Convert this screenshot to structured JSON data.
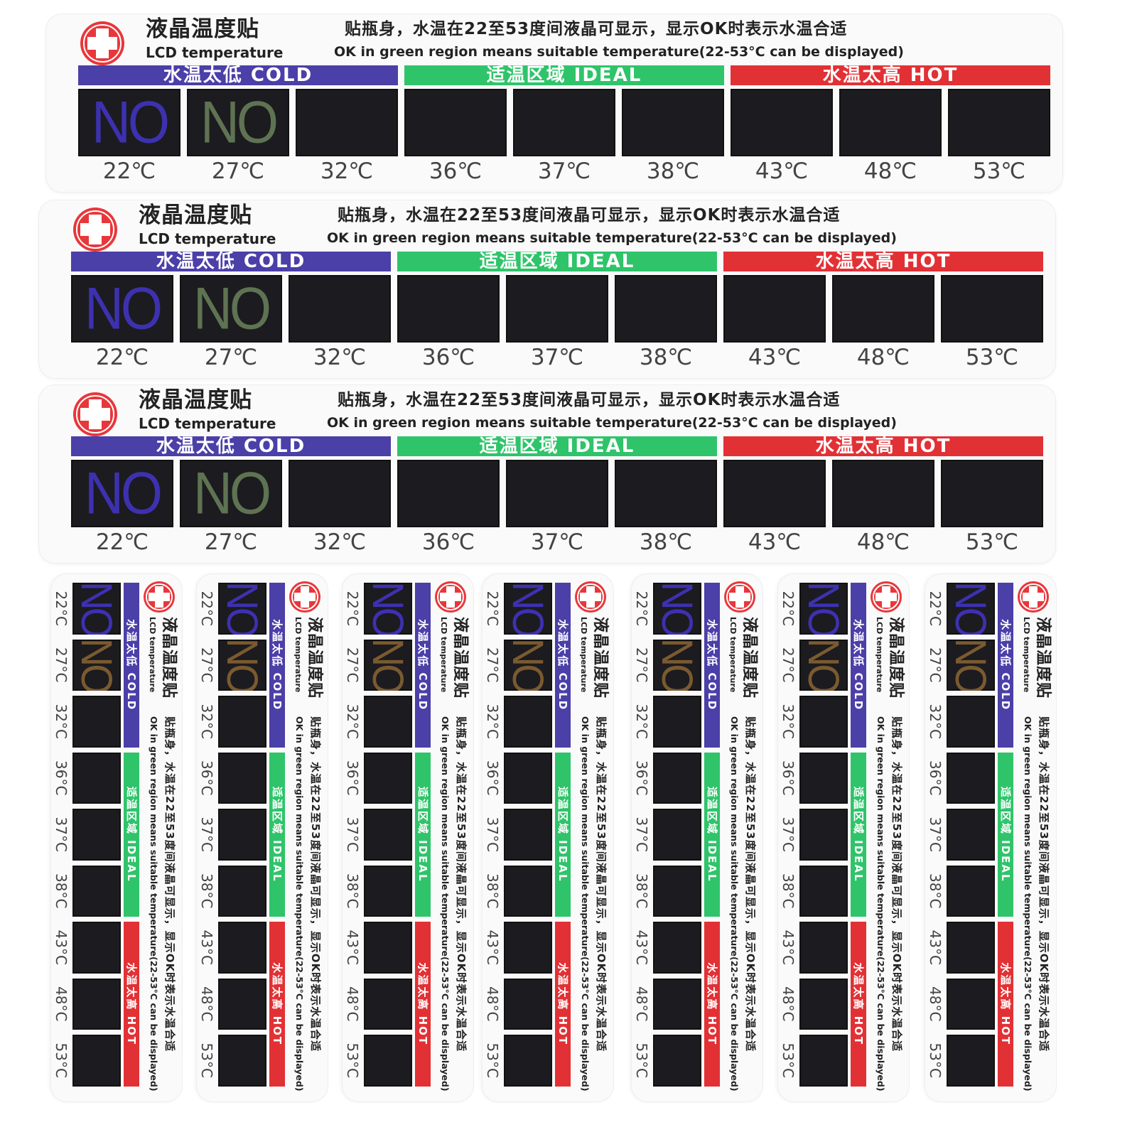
{
  "sticker": {
    "title_cn": "液晶温度贴",
    "title_en": "LCD temperature",
    "desc_cn": "贴瓶身，水温在22至53度间液晶可显示，显示OK时表示水温合适",
    "desc_en": "OK in green region means suitable temperature(22-53°C can be displayed)",
    "bands": [
      {
        "label": "水温太低  COLD",
        "color": "#4b3fa8"
      },
      {
        "label": "适温区域  IDEAL",
        "color": "#2fc46a"
      },
      {
        "label": "水温太高  HOT",
        "color": "#e23135"
      }
    ],
    "no_label": "NO",
    "temps_horizontal": [
      "22℃",
      "27℃",
      "32℃",
      "36℃",
      "37℃",
      "38℃",
      "43℃",
      "48℃",
      "53℃"
    ],
    "temps_vertical": [
      "22°C",
      "27°C",
      "32°C",
      "36°C",
      "37°C",
      "38°C",
      "43°C",
      "48°C",
      "53°C"
    ],
    "no_colors_horizontal": [
      "#3d31b0",
      "#5e7352"
    ],
    "no_colors_vertical": [
      "#3d31b0",
      "#7a5a30"
    ],
    "icon": "red-cross-icon"
  }
}
